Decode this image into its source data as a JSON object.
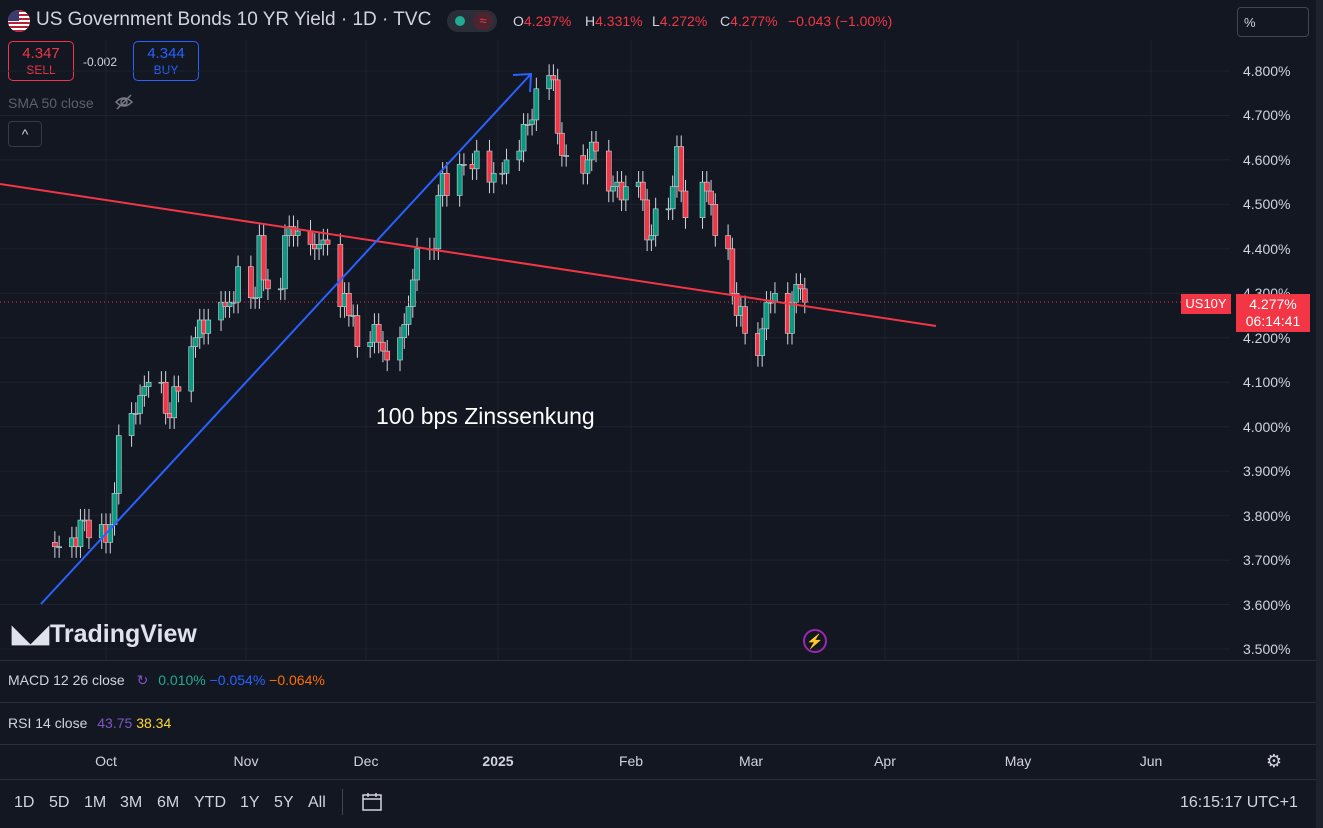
{
  "header": {
    "title": "US Government Bonds 10 YR Yield · 1D · TVC",
    "ohlc": [
      {
        "key": "O",
        "value": "4.297%"
      },
      {
        "key": "H",
        "value": "4.331%"
      },
      {
        "key": "L",
        "value": "4.272%"
      },
      {
        "key": "C",
        "value": "4.277%"
      }
    ],
    "change": "−0.043 (−1.00%)",
    "sell_price": "4.347",
    "sell_label": "SELL",
    "spread": "-0.002",
    "buy_price": "4.344",
    "buy_label": "BUY",
    "sma_label": "SMA 50 close",
    "collapse_icon": "^"
  },
  "scale_mode": "%",
  "price_labels": {
    "symbol": "US10Y",
    "price": "4.277%",
    "countdown": "06:14:41"
  },
  "annotation": "100 bps Zinssenkung",
  "watermark": "TradingView",
  "indicators": {
    "macd_label": "MACD 12 26 close",
    "macd_values": [
      "0.010%",
      "−0.054%",
      "−0.064%"
    ],
    "rsi_label": "RSI 14 close",
    "rsi_values": [
      "43.75",
      "38.34"
    ]
  },
  "range_buttons": [
    "1D",
    "5D",
    "1M",
    "3M",
    "6M",
    "YTD",
    "1Y",
    "5Y",
    "All"
  ],
  "clock": "16:15:17 UTC+1",
  "colors": {
    "up": "#089981",
    "down": "#f23645",
    "arrow": "#2962ff",
    "trendline": "#f23645",
    "bg": "#131722"
  },
  "chart_data": {
    "type": "candlestick",
    "title": "US Government Bonds 10 YR Yield · 1D · TVC",
    "x_ticks": [
      "Oct",
      "Nov",
      "Dec",
      "2025",
      "Feb",
      "Mar",
      "Apr",
      "May",
      "Jun"
    ],
    "y_ticks": [
      "4.800%",
      "4.700%",
      "4.600%",
      "4.500%",
      "4.400%",
      "4.300%",
      "4.200%",
      "4.100%",
      "4.000%",
      "3.900%",
      "3.800%",
      "3.700%",
      "3.600%",
      "3.500%"
    ],
    "ylim": [
      3.49,
      4.88
    ],
    "dates": [
      "2024-09-19",
      "2024-09-20",
      "2024-09-23",
      "2024-09-24",
      "2024-09-25",
      "2024-09-26",
      "2024-09-27",
      "2024-09-30",
      "2024-10-01",
      "2024-10-02",
      "2024-10-03",
      "2024-10-04",
      "2024-10-07",
      "2024-10-08",
      "2024-10-09",
      "2024-10-10",
      "2024-10-11",
      "2024-10-14",
      "2024-10-15",
      "2024-10-16",
      "2024-10-17",
      "2024-10-18",
      "2024-10-21",
      "2024-10-22",
      "2024-10-23",
      "2024-10-24",
      "2024-10-25",
      "2024-10-28",
      "2024-10-29",
      "2024-10-30",
      "2024-10-31",
      "2024-11-01",
      "2024-11-04",
      "2024-11-05",
      "2024-11-06",
      "2024-11-07",
      "2024-11-08",
      "2024-11-11",
      "2024-11-12",
      "2024-11-13",
      "2024-11-14",
      "2024-11-15",
      "2024-11-18",
      "2024-11-19",
      "2024-11-20",
      "2024-11-21",
      "2024-11-22",
      "2024-11-25",
      "2024-11-26",
      "2024-11-27",
      "2024-11-28",
      "2024-11-29",
      "2024-12-02",
      "2024-12-03",
      "2024-12-04",
      "2024-12-05",
      "2024-12-06",
      "2024-12-09",
      "2024-12-10",
      "2024-12-11",
      "2024-12-12",
      "2024-12-13",
      "2024-12-16",
      "2024-12-17",
      "2024-12-18",
      "2024-12-19",
      "2024-12-20",
      "2024-12-23",
      "2024-12-24",
      "2024-12-26",
      "2024-12-27",
      "2024-12-30",
      "2024-12-31",
      "2025-01-02",
      "2025-01-03",
      "2025-01-06",
      "2025-01-07",
      "2025-01-08",
      "2025-01-09",
      "2025-01-10",
      "2025-01-13",
      "2025-01-14",
      "2025-01-15",
      "2025-01-16",
      "2025-01-17",
      "2025-01-21",
      "2025-01-22",
      "2025-01-23",
      "2025-01-24",
      "2025-01-27",
      "2025-01-28",
      "2025-01-29",
      "2025-01-30",
      "2025-01-31",
      "2025-02-03",
      "2025-02-04",
      "2025-02-05",
      "2025-02-06",
      "2025-02-07",
      "2025-02-10",
      "2025-02-11",
      "2025-02-12",
      "2025-02-13",
      "2025-02-14",
      "2025-02-18",
      "2025-02-19",
      "2025-02-20",
      "2025-02-21",
      "2025-02-24",
      "2025-02-25",
      "2025-02-26",
      "2025-02-27",
      "2025-02-28",
      "2025-03-03",
      "2025-03-04",
      "2025-03-05",
      "2025-03-06",
      "2025-03-07",
      "2025-03-10",
      "2025-03-11",
      "2025-03-12",
      "2025-03-13",
      "2025-03-14"
    ],
    "close": [
      3.73,
      3.73,
      3.75,
      3.73,
      3.79,
      3.79,
      3.75,
      3.78,
      3.74,
      3.78,
      3.85,
      3.98,
      4.03,
      4.03,
      4.07,
      4.09,
      4.1,
      4.1,
      4.03,
      4.02,
      4.09,
      4.08,
      4.18,
      4.2,
      4.24,
      4.21,
      4.24,
      4.28,
      4.27,
      4.28,
      4.28,
      4.36,
      4.29,
      4.29,
      4.43,
      4.33,
      4.31,
      4.31,
      4.43,
      4.45,
      4.43,
      4.44,
      4.41,
      4.4,
      4.41,
      4.42,
      4.41,
      4.27,
      4.3,
      4.25,
      4.25,
      4.18,
      4.19,
      4.23,
      4.19,
      4.17,
      4.15,
      4.2,
      4.23,
      4.27,
      4.33,
      4.4,
      4.4,
      4.4,
      4.52,
      4.57,
      4.52,
      4.59,
      4.59,
      4.58,
      4.62,
      4.55,
      4.57,
      4.57,
      4.6,
      4.62,
      4.68,
      4.68,
      4.69,
      4.76,
      4.79,
      4.78,
      4.66,
      4.61,
      4.61,
      4.57,
      4.6,
      4.64,
      4.62,
      4.53,
      4.54,
      4.55,
      4.51,
      4.54,
      4.55,
      4.51,
      4.42,
      4.43,
      4.49,
      4.49,
      4.54,
      4.63,
      4.53,
      4.47,
      4.55,
      4.53,
      4.5,
      4.43,
      4.4,
      4.3,
      4.25,
      4.27,
      4.21,
      4.16,
      4.22,
      4.28,
      4.28,
      4.3,
      4.21,
      4.28,
      4.32,
      4.31,
      4.28
    ],
    "series": [
      {
        "values_note": "close"
      }
    ]
  }
}
